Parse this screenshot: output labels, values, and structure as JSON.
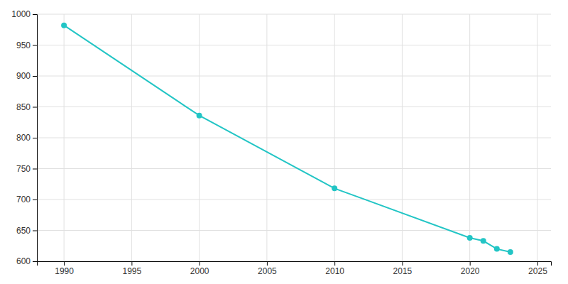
{
  "chart_data": {
    "type": "line",
    "x": [
      1990,
      2000,
      2010,
      2020,
      2021,
      2022,
      2023
    ],
    "values": [
      982,
      836,
      718,
      638,
      633,
      620,
      615
    ],
    "color": "#22c5c5",
    "marker": "circle",
    "xlim": [
      1988,
      2026
    ],
    "ylim": [
      600,
      1000
    ],
    "xticks": [
      1990,
      1995,
      2000,
      2005,
      2010,
      2015,
      2020,
      2025
    ],
    "yticks": [
      600,
      650,
      700,
      750,
      800,
      850,
      900,
      950,
      1000
    ],
    "grid": true
  }
}
